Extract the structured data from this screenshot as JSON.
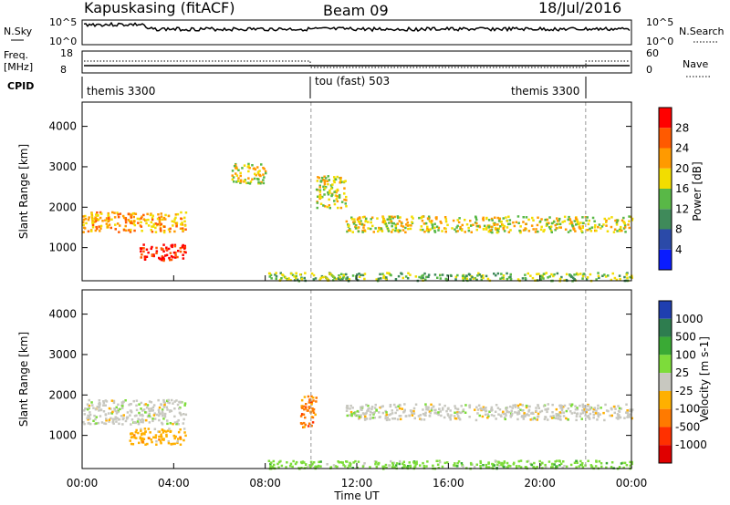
{
  "header": {
    "site": "Kapuskasing (fitACF)",
    "beam": "Beam 09",
    "date": "18/Jul/2016"
  },
  "summary": {
    "nsky_label": "N.Sky",
    "nsky_ticks": [
      "10^5",
      "10^0"
    ],
    "nsearch_label": "N.Search",
    "nsearch_ticks": [
      "10^5",
      "10^0"
    ],
    "freq_label": "Freq.",
    "freq_unit": "[MHz]",
    "freq_ticks": [
      "18",
      "8"
    ],
    "nave_label": "Nave",
    "nave_ticks": [
      "60",
      "0"
    ],
    "cpid_label": "CPID",
    "cpid_segments": [
      {
        "label": "themis 3300",
        "start_h": 0,
        "end_h": 10
      },
      {
        "label": "tou (fast) 503",
        "start_h": 10,
        "end_h": 22
      },
      {
        "label": "themis 3300",
        "start_h": 22,
        "end_h": 24
      }
    ]
  },
  "chart_data": [
    {
      "type": "heatmap",
      "quantity": "Power",
      "ylabel": "Slant Range [km]",
      "ylim": [
        180,
        4600
      ],
      "yticks": [
        1000,
        2000,
        3000,
        4000
      ],
      "xlim": [
        0,
        24
      ],
      "colorbar": {
        "label": "Power [dB]",
        "ticks": [
          "4",
          "8",
          "12",
          "16",
          "20",
          "24",
          "28"
        ],
        "colors": [
          "#0a1cff",
          "#2b4aa8",
          "#3f8a5a",
          "#59b847",
          "#f2dd00",
          "#ff9a00",
          "#ff5a00",
          "#ff0000"
        ]
      },
      "echo_regions": [
        {
          "t": [
            0.0,
            4.5
          ],
          "range_km": [
            1400,
            1900
          ],
          "level_db": 18
        },
        {
          "t": [
            2.5,
            4.5
          ],
          "range_km": [
            700,
            1100
          ],
          "level_db": 28
        },
        {
          "t": [
            6.5,
            8.0
          ],
          "range_km": [
            2600,
            3100
          ],
          "level_db": 14
        },
        {
          "t": [
            10.2,
            11.5
          ],
          "range_km": [
            2000,
            2800
          ],
          "level_db": 14
        },
        {
          "t": [
            11.5,
            24.0
          ],
          "range_km": [
            1400,
            1800
          ],
          "level_db": 14
        },
        {
          "t": [
            8.0,
            24.0
          ],
          "range_km": [
            200,
            400
          ],
          "level_db": 10
        }
      ]
    },
    {
      "type": "heatmap",
      "quantity": "Velocity",
      "ylabel": "Slant Range [km]",
      "ylim": [
        180,
        4600
      ],
      "yticks": [
        1000,
        2000,
        3000,
        4000
      ],
      "xlim": [
        0,
        24
      ],
      "xticks": [
        "00:00",
        "04:00",
        "08:00",
        "12:00",
        "16:00",
        "20:00",
        "00:00"
      ],
      "xlabel": "Time UT",
      "colorbar": {
        "label": "Velocity [m s-1]",
        "ticks": [
          "1000",
          "500",
          "100",
          "25",
          "-25",
          "-100",
          "-500",
          "-1000"
        ],
        "colors": [
          "#1f3fb0",
          "#2e7d4f",
          "#3aaa35",
          "#7ddc3a",
          "#c8c8c0",
          "#ffb000",
          "#ff7a00",
          "#ff3000",
          "#e00000"
        ]
      },
      "echo_regions": [
        {
          "t": [
            0.0,
            4.5
          ],
          "range_km": [
            1300,
            1900
          ],
          "level_ms": 0
        },
        {
          "t": [
            2.0,
            4.5
          ],
          "range_km": [
            800,
            1200
          ],
          "level_ms": -100
        },
        {
          "t": [
            9.5,
            10.2
          ],
          "range_km": [
            1200,
            2000
          ],
          "level_ms": -300
        },
        {
          "t": [
            11.5,
            24.0
          ],
          "range_km": [
            1400,
            1800
          ],
          "level_ms": 0
        },
        {
          "t": [
            8.0,
            24.0
          ],
          "range_km": [
            200,
            400
          ],
          "level_ms": 50
        }
      ]
    }
  ]
}
